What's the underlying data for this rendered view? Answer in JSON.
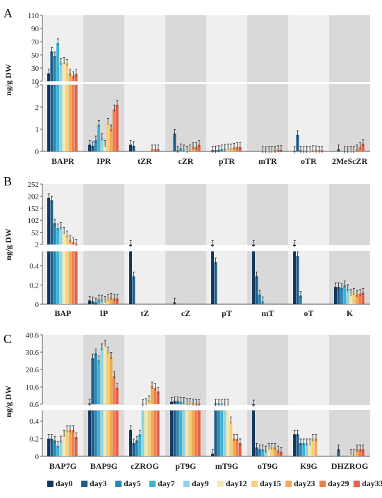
{
  "colors": {
    "series": [
      "#15375e",
      "#1d5d8a",
      "#2a86b3",
      "#3fb3d0",
      "#8fd3e3",
      "#f4e8b0",
      "#f6cf79",
      "#f3aa53",
      "#ef7f4a",
      "#e5604e"
    ],
    "band_dark": "#d9d9d9",
    "band_light": "#efefef"
  },
  "legend": [
    "day0",
    "day3",
    "day5",
    "day7",
    "day9",
    "day12",
    "day15",
    "day23",
    "day29",
    "day33"
  ],
  "chart_data": [
    {
      "panel": "A",
      "type": "bar",
      "ylabel": "ng/g DW",
      "y_upper_ticks": [
        "10",
        "30",
        "50",
        "70",
        "90",
        "110"
      ],
      "y_lower_ticks": [
        "0",
        "1",
        "2",
        "3"
      ],
      "categories": [
        "BAPR",
        "IPR",
        "tZR",
        "cZR",
        "pTR",
        "mTR",
        "oTR",
        "2MeScZR"
      ],
      "series": [
        {
          "name": "day0",
          "values": [
            22,
            0.3,
            0.3,
            0.0,
            0.05,
            0.0,
            0.03,
            0.0
          ]
        },
        {
          "name": "day3",
          "values": [
            55,
            0.25,
            0.25,
            0.8,
            0.05,
            0.0,
            0.75,
            0.1
          ]
        },
        {
          "name": "day5",
          "values": [
            48,
            0.5,
            0.0,
            0.05,
            0.07,
            0.0,
            0.05,
            0.0
          ]
        },
        {
          "name": "day7",
          "values": [
            68,
            1.2,
            0.0,
            0.15,
            0.1,
            0.03,
            0.03,
            0.03
          ]
        },
        {
          "name": "day9",
          "values": [
            38,
            0.6,
            0.0,
            0.1,
            0.12,
            0.03,
            0.05,
            0.03
          ]
        },
        {
          "name": "day12",
          "values": [
            40,
            0.3,
            0.0,
            0.05,
            0.15,
            0.04,
            0.05,
            0.05
          ]
        },
        {
          "name": "day15",
          "values": [
            37,
            1.3,
            0.0,
            0.1,
            0.15,
            0.05,
            0.07,
            0.05
          ]
        },
        {
          "name": "day23",
          "values": [
            22,
            1.0,
            0.1,
            0.2,
            0.18,
            0.05,
            0.06,
            0.1
          ]
        },
        {
          "name": "day29",
          "values": [
            18,
            1.9,
            0.1,
            0.2,
            0.2,
            0.07,
            0.05,
            0.2
          ]
        },
        {
          "name": "day33",
          "values": [
            21,
            2.1,
            0.1,
            0.3,
            0.2,
            0.07,
            0.05,
            0.35
          ]
        }
      ]
    },
    {
      "panel": "B",
      "type": "bar",
      "ylabel": "ng/g DW",
      "y_upper_ticks": [
        "2",
        "52",
        "102",
        "152",
        "202",
        "252"
      ],
      "y_lower_ticks": [
        "0",
        "0.2",
        "0.4"
      ],
      "categories": [
        "BAP",
        "IP",
        "tZ",
        "cZ",
        "pT",
        "mT",
        "oT",
        "K"
      ],
      "series": [
        {
          "name": "day0",
          "values": [
            195,
            0.04,
            0.58,
            0.0,
            0.58,
            0.58,
            0.58,
            0.18
          ]
        },
        {
          "name": "day3",
          "values": [
            185,
            0.03,
            0.29,
            0.02,
            0.44,
            0.29,
            0.5,
            0.18
          ]
        },
        {
          "name": "day5",
          "values": [
            90,
            0.02,
            0.0,
            0.0,
            0.0,
            0.1,
            0.09,
            0.17
          ]
        },
        {
          "name": "day7",
          "values": [
            70,
            0.05,
            0.0,
            0.0,
            0.0,
            0.03,
            0.0,
            0.2
          ]
        },
        {
          "name": "day9",
          "values": [
            75,
            0.05,
            0.0,
            0.0,
            0.0,
            0.0,
            0.0,
            0.16
          ]
        },
        {
          "name": "day12",
          "values": [
            55,
            0.04,
            0.0,
            0.0,
            0.0,
            0.0,
            0.0,
            0.11
          ]
        },
        {
          "name": "day15",
          "values": [
            40,
            0.06,
            0.0,
            0.0,
            0.0,
            0.0,
            0.0,
            0.12
          ]
        },
        {
          "name": "day23",
          "values": [
            22,
            0.07,
            0.0,
            0.0,
            0.0,
            0.0,
            0.0,
            0.1
          ]
        },
        {
          "name": "day29",
          "values": [
            12,
            0.06,
            0.0,
            0.0,
            0.0,
            0.0,
            0.0,
            0.11
          ]
        },
        {
          "name": "day33",
          "values": [
            6,
            0.06,
            0.0,
            0.0,
            0.0,
            0.0,
            0.0,
            0.12
          ]
        }
      ]
    },
    {
      "panel": "C",
      "type": "bar",
      "ylabel": "ng/g DW",
      "y_upper_ticks": [
        "0.6",
        "10.6",
        "20.6",
        "30.6",
        "40.6"
      ],
      "y_lower_ticks": [
        "0",
        "0.2",
        "0.4"
      ],
      "categories": [
        "BAP7G",
        "BAP9G",
        "cZROG",
        "pT9G",
        "mT9G",
        "oT9G",
        "K9G",
        "DHZROG"
      ],
      "series": [
        {
          "name": "day0",
          "values": [
            0.2,
            1.0,
            0.3,
            2.0,
            0.03,
            0.58,
            0.25,
            0.0
          ]
        },
        {
          "name": "day3",
          "values": [
            0.2,
            27,
            0.15,
            2.5,
            1.0,
            0.1,
            0.25,
            0.08
          ]
        },
        {
          "name": "day5",
          "values": [
            0.18,
            30,
            0.18,
            2.5,
            1.0,
            0.08,
            0.15,
            0.0
          ]
        },
        {
          "name": "day7",
          "values": [
            0.12,
            26,
            0.25,
            2.0,
            1.0,
            0.08,
            0.15,
            0.0
          ]
        },
        {
          "name": "day9",
          "values": [
            0.18,
            33,
            0.8,
            2.0,
            1.0,
            0.07,
            0.15,
            0.0
          ]
        },
        {
          "name": "day12",
          "values": [
            0.25,
            35,
            1.5,
            1.5,
            1.0,
            0.1,
            0.15,
            0.03
          ]
        },
        {
          "name": "day15",
          "values": [
            0.3,
            31,
            3.0,
            1.5,
            0.4,
            0.1,
            0.2,
            0.03
          ]
        },
        {
          "name": "day23",
          "values": [
            0.3,
            28,
            11,
            1.2,
            0.2,
            0.1,
            0.2,
            0.08
          ]
        },
        {
          "name": "day29",
          "values": [
            0.3,
            17,
            10,
            1.0,
            0.2,
            0.07,
            0.0,
            0.08
          ]
        },
        {
          "name": "day33",
          "values": [
            0.22,
            10,
            8,
            0.8,
            0.15,
            0.05,
            0.0,
            0.08
          ]
        }
      ]
    }
  ]
}
